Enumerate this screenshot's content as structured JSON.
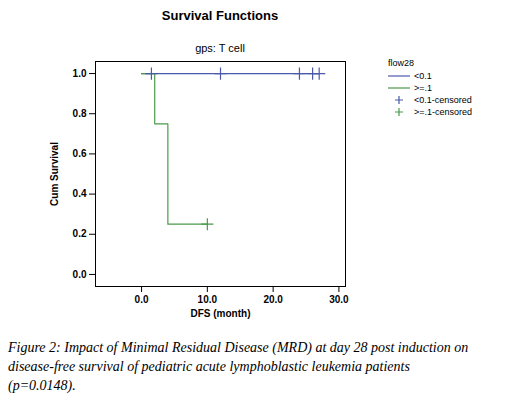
{
  "chart_data": {
    "type": "line",
    "title": "Survival Functions",
    "subtitle": "gps: T cell",
    "caption": "Figure 2: Impact of Minimal Residual Disease (MRD) at day 28 post induction on disease-free survival of pediatric acute lymphoblastic leukemia patients (p=0.0148).",
    "x_label": "DFS (month)",
    "y_label": "Cum Survival",
    "legend_title": "flow28",
    "legend": "right",
    "xlim": [
      -7,
      31
    ],
    "xticks": [
      {
        "value": 0,
        "label": "0.0"
      },
      {
        "value": 10,
        "label": "10.0"
      },
      {
        "value": 20,
        "label": "20.0"
      },
      {
        "value": 30,
        "label": "30.0"
      }
    ],
    "ylim": [
      -0.06,
      1.06
    ],
    "yticks": [
      {
        "value": 0,
        "label": "0.0"
      },
      {
        "value": 0.2,
        "label": "0.2"
      },
      {
        "value": 0.4,
        "label": "0.4"
      },
      {
        "value": 0.6,
        "label": "0.6"
      },
      {
        "value": 0.8,
        "label": "0.8"
      },
      {
        "value": 1,
        "label": "1.0"
      }
    ],
    "series": [
      {
        "name": "<0.1",
        "type": "line",
        "line_style": "step",
        "color": "#4a5aa8",
        "x": [
          0,
          27
        ],
        "values": [
          1,
          1
        ]
      },
      {
        "name": ">=.1",
        "type": "line",
        "line_style": "step",
        "color": "#4a9a4a",
        "x": [
          0,
          2,
          4,
          10
        ],
        "values": [
          1,
          0.75,
          0.25,
          0.25
        ]
      },
      {
        "name": "<0.1-censored",
        "type": "scatter",
        "marker": "plus",
        "color": "#4a5aa8",
        "x": [
          1.5,
          12,
          24,
          26,
          27
        ],
        "values": [
          1,
          1,
          1,
          1,
          1
        ]
      },
      {
        "name": ">=.1-censored",
        "type": "scatter",
        "marker": "plus",
        "color": "#4a9a4a",
        "x": [
          10
        ],
        "values": [
          0.25
        ]
      }
    ]
  }
}
